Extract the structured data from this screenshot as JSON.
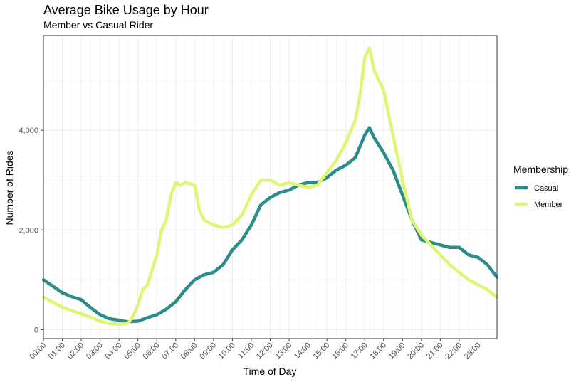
{
  "chart_data": {
    "type": "line",
    "title": "Average Bike Usage by Hour",
    "subtitle": "Member vs Casual Rider",
    "xlabel": "Time of Day",
    "ylabel": "Number of Rides",
    "xlim": [
      0,
      24
    ],
    "ylim": [
      -180,
      5900
    ],
    "x_ticks": [
      "00:00",
      "01:00",
      "02:00",
      "03:00",
      "04:00",
      "05:00",
      "06:00",
      "07:00",
      "08:00",
      "09:00",
      "10:00",
      "11:00",
      "12:00",
      "13:00",
      "14:00",
      "15:00",
      "16:00",
      "17:00",
      "18:00",
      "19:00",
      "20:00",
      "21:00",
      "22:00",
      "23:00"
    ],
    "y_ticks": [
      {
        "value": 0,
        "label": "0"
      },
      {
        "value": 2000,
        "label": "2,000"
      },
      {
        "value": 4000,
        "label": "4,000"
      }
    ],
    "grid": true,
    "legend": {
      "title": "Membership",
      "position": "right"
    },
    "series": [
      {
        "name": "Casual",
        "color": "#2a8d89",
        "x": [
          0,
          0.5,
          1,
          1.5,
          2,
          2.5,
          3,
          3.5,
          4,
          4.25,
          4.5,
          5,
          5.5,
          6,
          6.5,
          7,
          7.5,
          8,
          8.5,
          9,
          9.5,
          10,
          10.5,
          11,
          11.5,
          12,
          12.5,
          13,
          13.5,
          14,
          14.5,
          15,
          15.5,
          16,
          16.5,
          17,
          17.25,
          17.5,
          18,
          18.5,
          19,
          19.5,
          20,
          20.5,
          21,
          21.5,
          22,
          22.5,
          23,
          23.5,
          24
        ],
        "values": [
          1000,
          870,
          740,
          660,
          600,
          440,
          300,
          220,
          190,
          170,
          160,
          170,
          240,
          300,
          410,
          560,
          800,
          1000,
          1100,
          1150,
          1300,
          1600,
          1800,
          2100,
          2500,
          2650,
          2750,
          2800,
          2900,
          2950,
          2950,
          3050,
          3200,
          3300,
          3450,
          3900,
          4050,
          3850,
          3550,
          3200,
          2700,
          2200,
          1800,
          1750,
          1700,
          1650,
          1650,
          1500,
          1450,
          1300,
          1050
        ]
      },
      {
        "name": "Member",
        "color": "#dff575",
        "x": [
          0,
          0.5,
          1,
          1.5,
          2,
          2.5,
          3,
          3.5,
          4,
          4.25,
          4.5,
          4.75,
          5,
          5.25,
          5.5,
          6,
          6.25,
          6.5,
          6.75,
          7,
          7.25,
          7.5,
          8,
          8.25,
          8.5,
          9,
          9.5,
          10,
          10.5,
          11,
          11.5,
          12,
          12.5,
          13,
          13.5,
          14,
          14.5,
          15,
          15.5,
          16,
          16.5,
          16.75,
          17,
          17.25,
          17.5,
          17.75,
          18,
          18.5,
          19,
          19.5,
          20,
          20.5,
          21,
          21.5,
          22,
          22.5,
          23,
          23.5,
          24
        ],
        "values": [
          650,
          550,
          450,
          380,
          320,
          250,
          170,
          120,
          110,
          115,
          140,
          280,
          500,
          800,
          900,
          1500,
          2000,
          2200,
          2700,
          2950,
          2900,
          2950,
          2900,
          2400,
          2200,
          2100,
          2050,
          2100,
          2300,
          2700,
          3000,
          3000,
          2900,
          2950,
          2900,
          2850,
          2900,
          3150,
          3400,
          3750,
          4200,
          4700,
          5450,
          5650,
          5200,
          5000,
          4800,
          3900,
          3000,
          2200,
          1900,
          1700,
          1500,
          1300,
          1150,
          1000,
          900,
          800,
          650
        ]
      }
    ]
  }
}
